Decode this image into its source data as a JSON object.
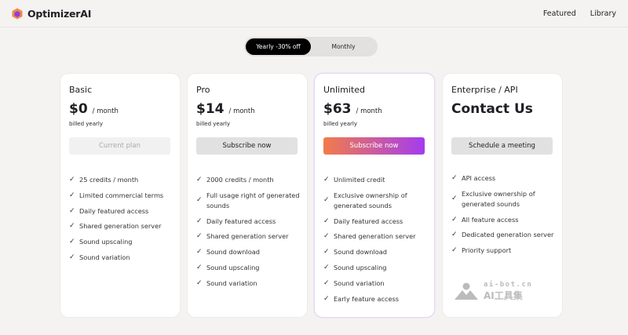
{
  "header": {
    "brand": "OptimizerAI",
    "nav": [
      "Featured",
      "Library"
    ]
  },
  "billing_toggle": {
    "options": [
      "Yearly -30% off",
      "Monthly"
    ],
    "selected": "Yearly -30% off"
  },
  "plans": [
    {
      "name": "Basic",
      "price": "$0",
      "unit": "/ month",
      "billed": "billed yearly",
      "button": "Current plan",
      "features": [
        "25 credits / month",
        "Limited commercial terms",
        "Daily featured access",
        "Shared generation server",
        "Sound upscaling",
        "Sound variation"
      ]
    },
    {
      "name": "Pro",
      "price": "$14",
      "unit": "/ month",
      "billed": "billed yearly",
      "button": "Subscribe now",
      "features": [
        "2000 credits / month",
        "Full usage right of generated sounds",
        "Daily featured access",
        "Shared generation server",
        "Sound download",
        "Sound upscaling",
        "Sound variation"
      ]
    },
    {
      "name": "Unlimited",
      "price": "$63",
      "unit": "/ month",
      "billed": "billed yearly",
      "button": "Subscribe now",
      "features": [
        "Unlimited credit",
        "Exclusive ownership of generated sounds",
        "Daily featured access",
        "Shared generation server",
        "Sound download",
        "Sound upscaling",
        "Sound variation",
        "Early feature access"
      ]
    },
    {
      "name": "Enterprise / API",
      "price": "Contact Us",
      "button": "Schedule a meeting",
      "features": [
        "API access",
        "Exclusive ownership of generated sounds",
        "All feature access",
        "Dedicated generation server",
        "Priority support"
      ]
    }
  ],
  "watermark": {
    "line1": "ai-bot.cn",
    "line2": "AI工具集"
  },
  "colors": {
    "gradient_start": "#f27c4a",
    "gradient_end": "#a43cf0",
    "toggle_active": "#000000"
  }
}
